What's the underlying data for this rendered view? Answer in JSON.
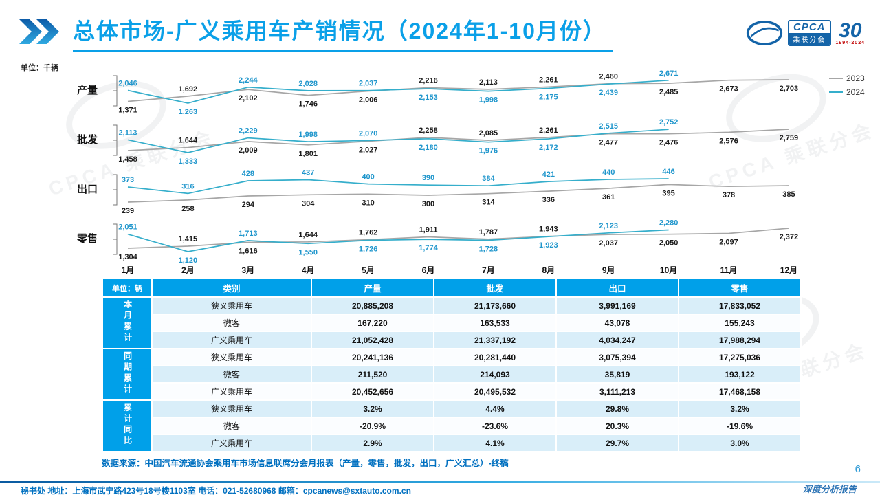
{
  "accent": {
    "primary_blue": "#00A0E9",
    "deep_blue": "#1464A8",
    "line_2023": "#A6A6A6",
    "line_2024": "#35AECB",
    "label_2024": "#1F96CC",
    "table_stripe": "#D9EEF9",
    "footer_blue": "#0070C0"
  },
  "header": {
    "title": "总体市场-广义乘用车产销情况（2024年1-10月份）",
    "logo": {
      "cpca": "CPCA",
      "cpca_sub": "乘联分会",
      "anniversary": "30",
      "anniversary_years": "1994-2024"
    }
  },
  "watermark": {
    "text": "CPCA 乘联分会"
  },
  "chart": {
    "unit_label": "单位：千辆",
    "months": [
      "1月",
      "2月",
      "3月",
      "4月",
      "5月",
      "6月",
      "7月",
      "8月",
      "9月",
      "10月",
      "11月",
      "12月"
    ],
    "legend": [
      {
        "label": "2023",
        "color": "#A6A6A6"
      },
      {
        "label": "2024",
        "color": "#35AECB"
      }
    ]
  },
  "chart_data": [
    {
      "type": "line",
      "title": "产量",
      "x": [
        "1月",
        "2月",
        "3月",
        "4月",
        "5月",
        "6月",
        "7月",
        "8月",
        "9月",
        "10月",
        "11月",
        "12月"
      ],
      "series": [
        {
          "name": "2023",
          "color": "#A6A6A6",
          "values": [
            1371,
            1692,
            2102,
            1746,
            2006,
            2216,
            2113,
            2261,
            2460,
            2485,
            2673,
            2703
          ]
        },
        {
          "name": "2024",
          "color": "#35AECB",
          "values": [
            2046,
            1263,
            2244,
            2028,
            2037,
            2153,
            1998,
            2175,
            2439,
            2671
          ]
        }
      ]
    },
    {
      "type": "line",
      "title": "批发",
      "x": [
        "1月",
        "2月",
        "3月",
        "4月",
        "5月",
        "6月",
        "7月",
        "8月",
        "9月",
        "10月",
        "11月",
        "12月"
      ],
      "series": [
        {
          "name": "2023",
          "color": "#A6A6A6",
          "values": [
            1458,
            1644,
            2009,
            1801,
            2027,
            2258,
            2085,
            2261,
            2477,
            2476,
            2576,
            2759
          ]
        },
        {
          "name": "2024",
          "color": "#35AECB",
          "values": [
            2113,
            1333,
            2229,
            1998,
            2070,
            2180,
            1976,
            2172,
            2515,
            2752
          ]
        }
      ]
    },
    {
      "type": "line",
      "title": "出口",
      "x": [
        "1月",
        "2月",
        "3月",
        "4月",
        "5月",
        "6月",
        "7月",
        "8月",
        "9月",
        "10月",
        "11月",
        "12月"
      ],
      "series": [
        {
          "name": "2023",
          "color": "#A6A6A6",
          "values": [
            239,
            258,
            294,
            304,
            310,
            300,
            314,
            336,
            361,
            395,
            378,
            385
          ]
        },
        {
          "name": "2024",
          "color": "#35AECB",
          "values": [
            373,
            316,
            428,
            437,
            400,
            390,
            384,
            421,
            440,
            446
          ]
        }
      ]
    },
    {
      "type": "line",
      "title": "零售",
      "x": [
        "1月",
        "2月",
        "3月",
        "4月",
        "5月",
        "6月",
        "7月",
        "8月",
        "9月",
        "10月",
        "11月",
        "12月"
      ],
      "series": [
        {
          "name": "2023",
          "color": "#A6A6A6",
          "values": [
            1304,
            1415,
            1616,
            1644,
            1762,
            1911,
            1787,
            1943,
            2037,
            2050,
            2097,
            2372
          ]
        },
        {
          "name": "2024",
          "color": "#35AECB",
          "values": [
            2051,
            1120,
            1713,
            1550,
            1726,
            1774,
            1728,
            1923,
            2123,
            2280
          ]
        }
      ]
    }
  ],
  "table": {
    "unit_header": "单位：辆",
    "columns": [
      "类别",
      "产量",
      "批发",
      "出口",
      "零售"
    ],
    "groups": [
      {
        "label": "本月累计",
        "rows": [
          {
            "category": "狭义乘用车",
            "values": [
              "20,885,208",
              "21,173,660",
              "3,991,169",
              "17,833,052"
            ]
          },
          {
            "category": "微客",
            "values": [
              "167,220",
              "163,533",
              "43,078",
              "155,243"
            ]
          },
          {
            "category": "广义乘用车",
            "values": [
              "21,052,428",
              "21,337,192",
              "4,034,247",
              "17,988,294"
            ]
          }
        ]
      },
      {
        "label": "同期累计",
        "rows": [
          {
            "category": "狭义乘用车",
            "values": [
              "20,241,136",
              "20,281,440",
              "3,075,394",
              "17,275,036"
            ]
          },
          {
            "category": "微客",
            "values": [
              "211,520",
              "214,093",
              "35,819",
              "193,122"
            ]
          },
          {
            "category": "广义乘用车",
            "values": [
              "20,452,656",
              "20,495,532",
              "3,111,213",
              "17,468,158"
            ]
          }
        ]
      },
      {
        "label": "累计同比",
        "rows": [
          {
            "category": "狭义乘用车",
            "values": [
              "3.2%",
              "4.4%",
              "29.8%",
              "3.2%"
            ]
          },
          {
            "category": "微客",
            "values": [
              "-20.9%",
              "-23.6%",
              "20.3%",
              "-19.6%"
            ]
          },
          {
            "category": "广义乘用车",
            "values": [
              "2.9%",
              "4.1%",
              "29.7%",
              "3.0%"
            ]
          }
        ]
      }
    ]
  },
  "footer": {
    "source": "数据来源：中国汽车流通协会乘用车市场信息联席分会月报表（产量，零售，批发，出口，广义汇总）-终稿",
    "page_number": "6",
    "report_type": "深度分析报告",
    "contact": "秘书处  地址：上海市武宁路423号18号楼1103室  电话：021-52680968   邮箱：cpcanews@sxtauto.com.cn"
  }
}
